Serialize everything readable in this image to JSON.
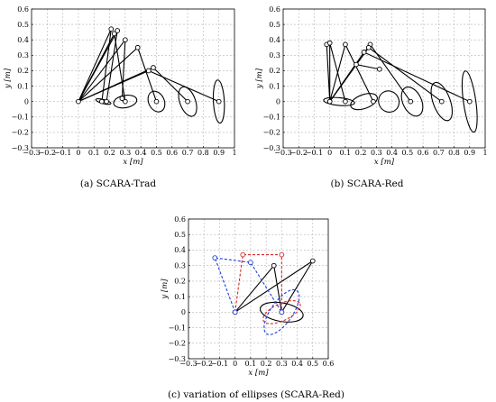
{
  "figure": {
    "captions": [
      "(a) SCARA-Trad",
      "(b) SCARA-Red",
      "(c) variation of ellipses (SCARA-Red)"
    ]
  },
  "chart_data": [
    {
      "type": "line",
      "caption": "(a) SCARA-Trad",
      "xlabel": "x [m]",
      "ylabel": "y [m]",
      "xlim": [
        -0.3,
        1.0
      ],
      "ylim": [
        -0.3,
        0.6
      ],
      "xticks": [
        -0.3,
        -0.2,
        -0.1,
        0,
        0.1,
        0.2,
        0.3,
        0.4,
        0.5,
        0.6,
        0.7,
        0.8,
        0.9,
        1
      ],
      "xtick_labels": [
        "−0.3",
        "−0.2",
        "−0.1",
        "0",
        "0.1",
        "0.2",
        "0.3",
        "0.4",
        "0.5",
        "0.6",
        "0.7",
        "0.8",
        "0.9",
        "1"
      ],
      "yticks": [
        -0.3,
        -0.2,
        -0.1,
        0,
        0.1,
        0.2,
        0.3,
        0.4,
        0.5,
        0.6
      ],
      "ytick_labels": [
        "−0.3",
        "−0.2",
        "−0.1",
        "0",
        "0.1",
        "0.2",
        "0.3",
        "0.4",
        "0.5",
        "0.6"
      ],
      "grid": true,
      "base": [
        0,
        0
      ],
      "configurations": [
        {
          "elbow": [
            0.21,
            0.47
          ],
          "end": [
            0.15,
            0.0
          ]
        },
        {
          "elbow": [
            0.25,
            0.46
          ],
          "end": [
            0.18,
            0.0
          ]
        },
        {
          "elbow": [
            0.23,
            0.44
          ],
          "end": [
            0.3,
            0.0
          ]
        },
        {
          "elbow": [
            0.3,
            0.4
          ],
          "end": [
            0.28,
            0.02
          ]
        },
        {
          "elbow": [
            0.38,
            0.35
          ],
          "end": [
            0.5,
            0.0
          ]
        },
        {
          "elbow": [
            0.48,
            0.22
          ],
          "end": [
            0.7,
            0.0
          ]
        },
        {
          "elbow": [
            0.45,
            0.2
          ],
          "end": [
            0.9,
            0.0
          ]
        }
      ],
      "ellipses": [
        {
          "cx": 0.16,
          "cy": 0.0,
          "rx": 0.05,
          "ry": 0.013,
          "angle": -15
        },
        {
          "cx": 0.3,
          "cy": 0.0,
          "rx": 0.075,
          "ry": 0.04,
          "angle": 10
        },
        {
          "cx": 0.5,
          "cy": 0.0,
          "rx": 0.05,
          "ry": 0.07,
          "angle": 25
        },
        {
          "cx": 0.7,
          "cy": 0.0,
          "rx": 0.05,
          "ry": 0.1,
          "angle": 20
        },
        {
          "cx": 0.9,
          "cy": 0.0,
          "rx": 0.035,
          "ry": 0.14,
          "angle": 3
        }
      ]
    },
    {
      "type": "line",
      "caption": "(b) SCARA-Red",
      "xlabel": "x [m]",
      "ylabel": "y [m]",
      "xlim": [
        -0.3,
        1.0
      ],
      "ylim": [
        -0.3,
        0.6
      ],
      "xticks": [
        -0.3,
        -0.2,
        -0.1,
        0,
        0.1,
        0.2,
        0.3,
        0.4,
        0.5,
        0.6,
        0.7,
        0.8,
        0.9,
        1
      ],
      "xtick_labels": [
        "−0.3",
        "−0.2",
        "−0.1",
        "0",
        "0.1",
        "0.2",
        "0.3",
        "0.4",
        "0.5",
        "0.6",
        "0.7",
        "0.8",
        "0.9",
        "1"
      ],
      "yticks": [
        -0.3,
        -0.2,
        -0.1,
        0,
        0.1,
        0.2,
        0.3,
        0.4,
        0.5,
        0.6
      ],
      "ytick_labels": [
        "−0.3",
        "−0.2",
        "−0.1",
        "0",
        "0.1",
        "0.2",
        "0.3",
        "0.4",
        "0.5",
        "0.6"
      ],
      "grid": true,
      "base": [
        0,
        0
      ],
      "configurations": [
        {
          "elbow": [
            -0.02,
            0.37
          ],
          "end": [
            0.0,
            0.0
          ]
        },
        {
          "elbow": [
            0.0,
            0.38
          ],
          "end": [
            0.1,
            0.0
          ]
        },
        {
          "elbow": [
            0.1,
            0.37
          ],
          "end": [
            0.28,
            0.0
          ]
        },
        {
          "elbow": [
            0.26,
            0.37
          ],
          "end": [
            0.52,
            0.0
          ]
        },
        {
          "elbow": [
            0.25,
            0.35
          ],
          "end": [
            0.72,
            0.0
          ]
        },
        {
          "elbow": [
            0.22,
            0.32
          ],
          "end": [
            0.9,
            0.0
          ]
        },
        {
          "elbow": [
            0.17,
            0.24
          ],
          "end": [
            0.32,
            0.21
          ]
        }
      ],
      "ellipses": [
        {
          "cx": 0.06,
          "cy": 0.0,
          "rx": 0.1,
          "ry": 0.025,
          "angle": -5
        },
        {
          "cx": 0.22,
          "cy": 0.0,
          "rx": 0.09,
          "ry": 0.045,
          "angle": 20
        },
        {
          "cx": 0.38,
          "cy": 0.0,
          "rx": 0.065,
          "ry": 0.07,
          "angle": 30
        },
        {
          "cx": 0.53,
          "cy": 0.0,
          "rx": 0.06,
          "ry": 0.1,
          "angle": 25
        },
        {
          "cx": 0.72,
          "cy": 0.0,
          "rx": 0.055,
          "ry": 0.13,
          "angle": 20
        },
        {
          "cx": 0.9,
          "cy": 0.0,
          "rx": 0.04,
          "ry": 0.2,
          "angle": 8
        }
      ]
    },
    {
      "type": "line",
      "caption": "(c) variation of ellipses (SCARA-Red)",
      "xlabel": "x [m]",
      "ylabel": "y [m]",
      "xlim": [
        -0.3,
        0.6
      ],
      "ylim": [
        -0.3,
        0.6
      ],
      "xticks": [
        -0.3,
        -0.2,
        -0.1,
        0,
        0.1,
        0.2,
        0.3,
        0.4,
        0.5,
        0.6
      ],
      "xtick_labels": [
        "−0.3",
        "−0.2",
        "−0.1",
        "0",
        "0.1",
        "0.2",
        "0.3",
        "0.4",
        "0.5",
        "0.6"
      ],
      "yticks": [
        -0.3,
        -0.2,
        -0.1,
        0,
        0.1,
        0.2,
        0.3,
        0.4,
        0.5,
        0.6
      ],
      "ytick_labels": [
        "−0.3",
        "−0.2",
        "−0.1",
        "0",
        "0.1",
        "0.2",
        "0.3",
        "0.4",
        "0.5",
        "0.6"
      ],
      "grid": true,
      "series": [
        {
          "color": "#000000",
          "dash": "solid",
          "arm": [
            [
              0,
              0
            ],
            [
              0.5,
              0.33
            ],
            [
              0.3,
              0.0
            ],
            [
              0.25,
              0.3
            ],
            [
              0,
              0
            ]
          ],
          "ellipse": {
            "cx": 0.3,
            "cy": 0.0,
            "rx": 0.14,
            "ry": 0.06,
            "angle": -10
          }
        },
        {
          "color": "#d62728",
          "dash": "dashed",
          "arm": [
            [
              0,
              0
            ],
            [
              0.05,
              0.37
            ],
            [
              0.3,
              0.37
            ],
            [
              0.3,
              0.0
            ]
          ],
          "ellipse": {
            "cx": 0.3,
            "cy": 0.0,
            "rx": 0.13,
            "ry": 0.055,
            "angle": 25
          }
        },
        {
          "color": "#1f3fd6",
          "dash": "dashed",
          "arm": [
            [
              0,
              0
            ],
            [
              -0.13,
              0.35
            ],
            [
              0.1,
              0.32
            ],
            [
              0.3,
              0.0
            ]
          ],
          "ellipse": {
            "cx": 0.3,
            "cy": 0.0,
            "rx": 0.17,
            "ry": 0.07,
            "angle": 55
          }
        }
      ]
    }
  ]
}
